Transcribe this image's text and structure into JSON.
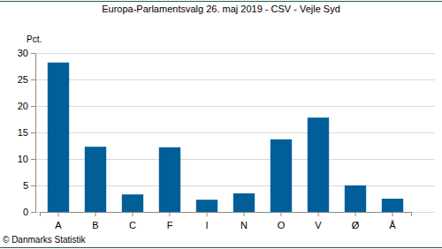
{
  "chart_data": {
    "type": "bar",
    "title": "Europa-Parlamentsvalg 26. maj 2019 - CSV - Vejle Syd",
    "y_label": "Pct.",
    "source": "© Danmarks Statistik",
    "categories": [
      "A",
      "B",
      "C",
      "F",
      "I",
      "N",
      "O",
      "V",
      "Ø",
      "Å"
    ],
    "values": [
      28.2,
      12.3,
      3.3,
      12.2,
      2.3,
      3.5,
      13.7,
      17.8,
      5.0,
      2.5
    ],
    "color": "#005f99",
    "ylim": [
      0,
      30
    ],
    "yticks": [
      0,
      5,
      10,
      15,
      20,
      25,
      30
    ],
    "grid": true
  }
}
